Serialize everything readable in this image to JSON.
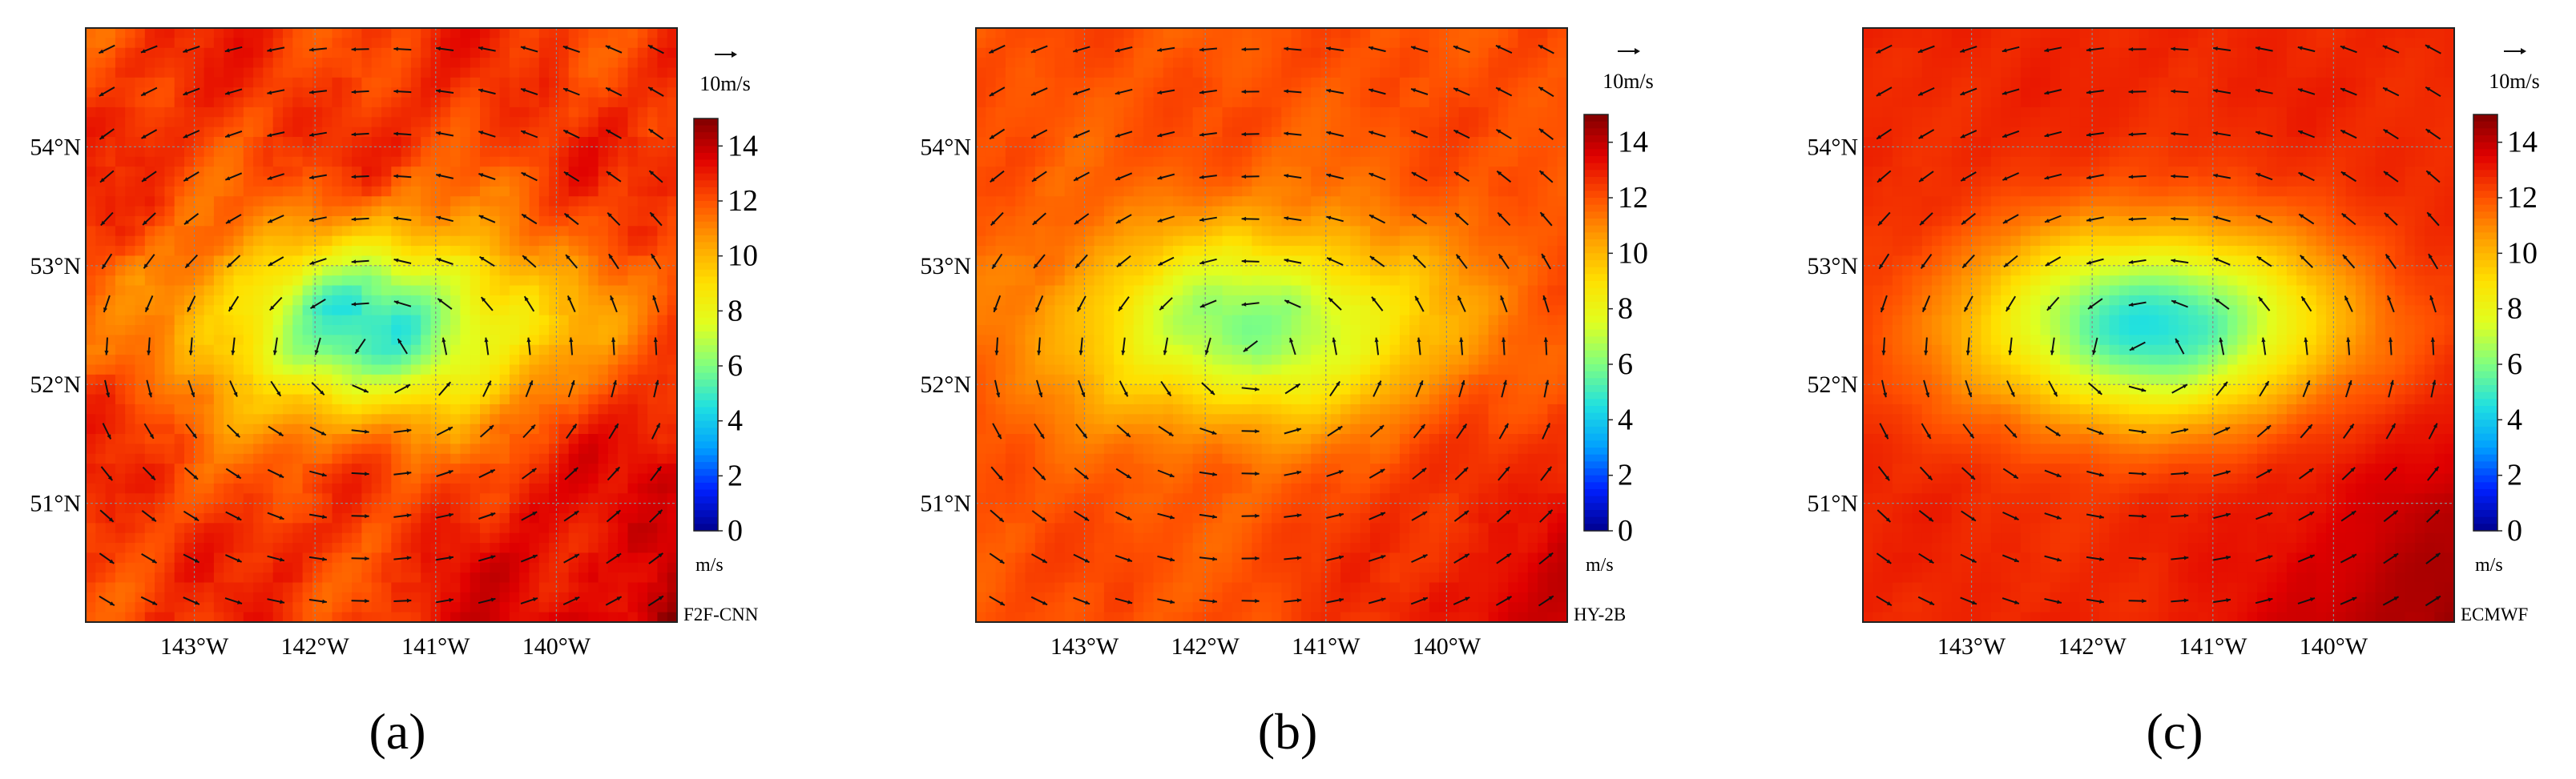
{
  "chart_data": [
    {
      "type": "heatmap",
      "panel_label": "(a)",
      "source_label": "F2F-CNN",
      "x_ticks": [
        "143°W",
        "142°W",
        "141°W",
        "140°W"
      ],
      "y_ticks": [
        "51°N",
        "52°N",
        "53°N",
        "54°N"
      ],
      "xlim": [
        -143.9,
        -139.0
      ],
      "ylim": [
        50.0,
        55.0
      ],
      "x_tick_values": [
        -143,
        -142,
        -141,
        -140
      ],
      "y_tick_values": [
        51,
        52,
        53,
        54
      ],
      "grid": true,
      "colorbar": {
        "min": 0,
        "max": 15,
        "ticks": [
          0,
          2,
          4,
          6,
          8,
          10,
          12,
          14
        ],
        "unit": "m/s"
      },
      "vector_key": {
        "label": "10m/s",
        "speed": 10
      },
      "field": {
        "center": [
          -141.5,
          52.5
        ],
        "min_speed": 5,
        "ambient_speed": 12.5,
        "noise": 1.2
      }
    },
    {
      "type": "heatmap",
      "panel_label": "(b)",
      "source_label": "HY-2B",
      "x_ticks": [
        "143°W",
        "142°W",
        "141°W",
        "140°W"
      ],
      "y_ticks": [
        "51°N",
        "52°N",
        "53°N",
        "54°N"
      ],
      "xlim": [
        -143.9,
        -139.0
      ],
      "ylim": [
        50.0,
        55.0
      ],
      "x_tick_values": [
        -143,
        -142,
        -141,
        -140
      ],
      "y_tick_values": [
        51,
        52,
        53,
        54
      ],
      "grid": true,
      "colorbar": {
        "min": 0,
        "max": 15,
        "ticks": [
          0,
          2,
          4,
          6,
          8,
          10,
          12,
          14
        ],
        "unit": "m/s"
      },
      "vector_key": {
        "label": "10m/s",
        "speed": 10
      },
      "field": {
        "center": [
          -141.6,
          52.5
        ],
        "min_speed": 6,
        "ambient_speed": 12.0,
        "noise": 0.6
      }
    },
    {
      "type": "heatmap",
      "panel_label": "(c)",
      "source_label": "ECMWF",
      "x_ticks": [
        "143°W",
        "142°W",
        "141°W",
        "140°W"
      ],
      "y_ticks": [
        "51°N",
        "52°N",
        "53°N",
        "54°N"
      ],
      "xlim": [
        -143.9,
        -139.0
      ],
      "ylim": [
        50.0,
        55.0
      ],
      "x_tick_values": [
        -143,
        -142,
        -141,
        -140
      ],
      "y_tick_values": [
        51,
        52,
        53,
        54
      ],
      "grid": true,
      "colorbar": {
        "min": 0,
        "max": 15,
        "ticks": [
          0,
          2,
          4,
          6,
          8,
          10,
          12,
          14
        ],
        "unit": "m/s"
      },
      "vector_key": {
        "label": "10m/s",
        "speed": 10
      },
      "field": {
        "center": [
          -141.5,
          52.5
        ],
        "min_speed": 4.5,
        "ambient_speed": 12.8,
        "noise": 0.3
      }
    }
  ],
  "colors": {
    "colormap": [
      "#00008f",
      "#0020ff",
      "#00a0ff",
      "#20e0e0",
      "#80ff80",
      "#e0ff20",
      "#ffe000",
      "#ffa000",
      "#ff5000",
      "#e00000",
      "#800000"
    ]
  }
}
